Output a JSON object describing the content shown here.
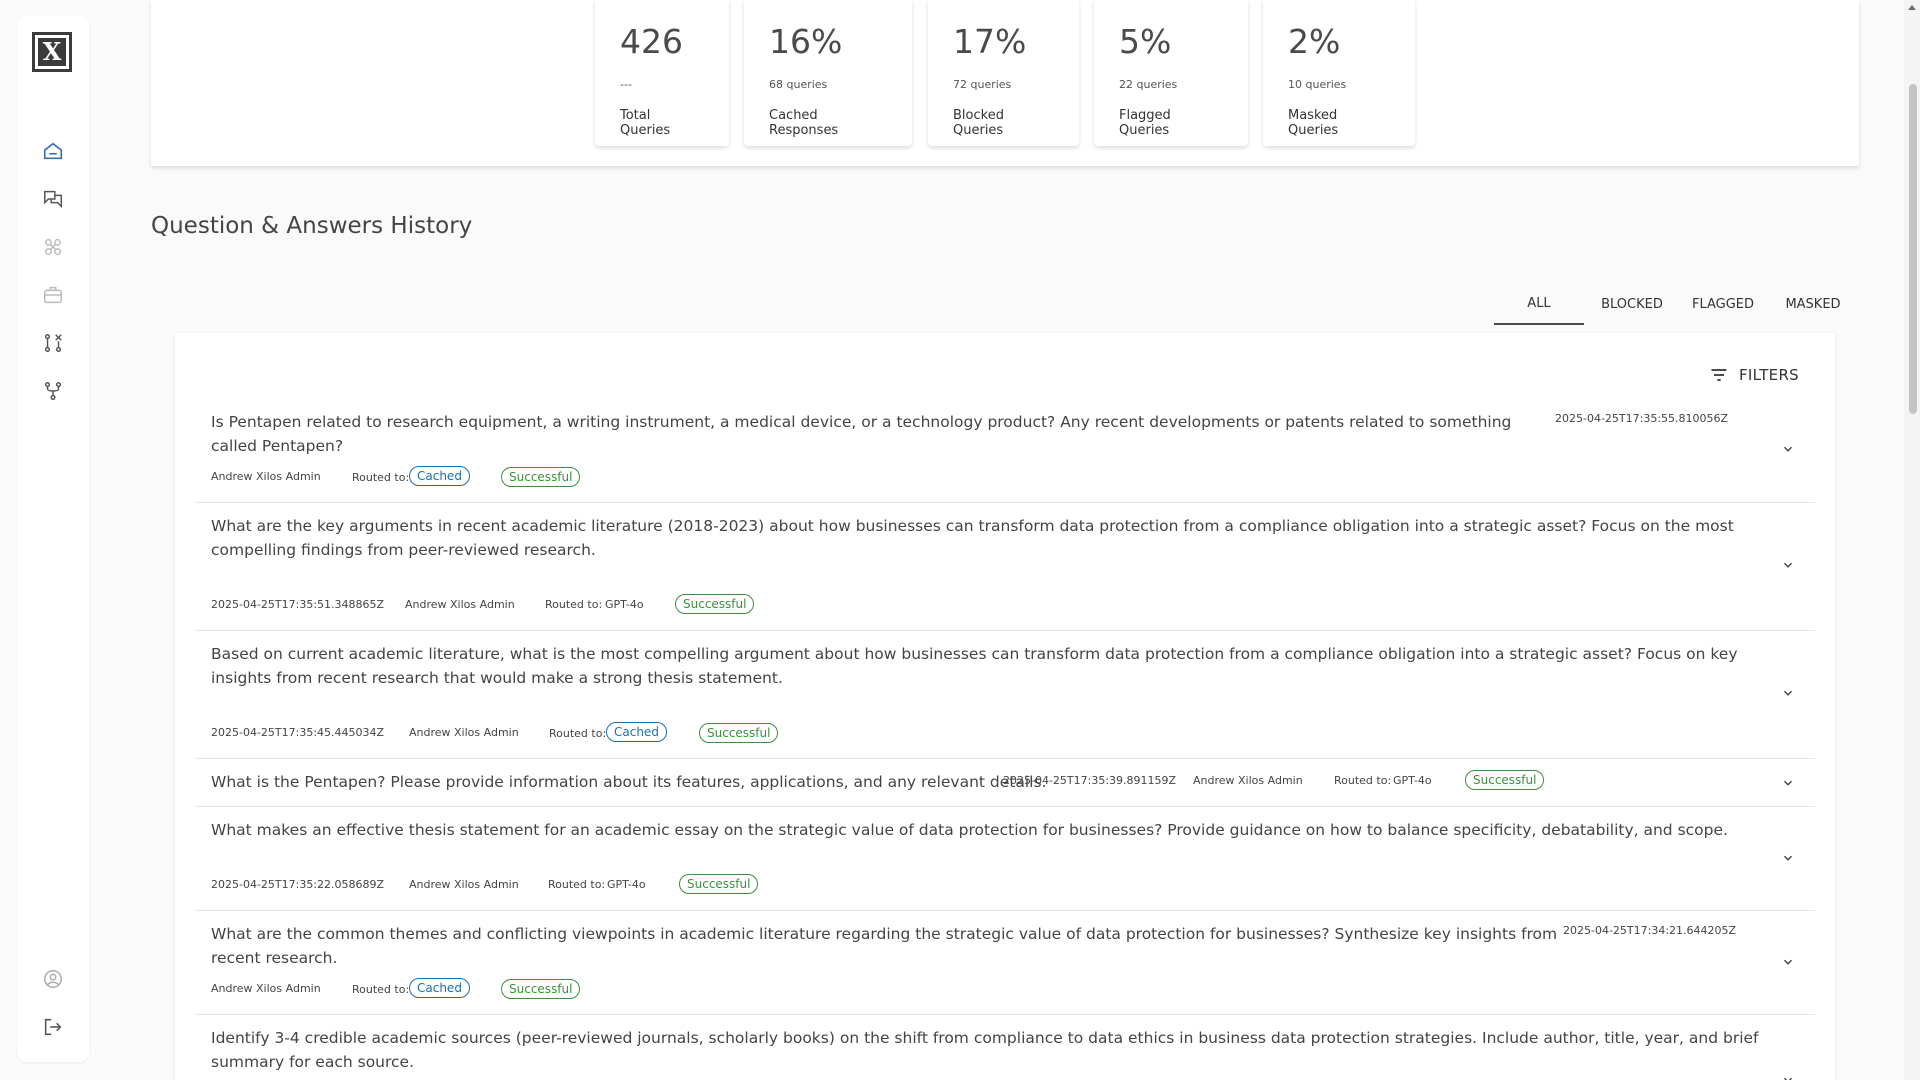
{
  "sidebar": {
    "logo_text": "X",
    "items": [
      {
        "icon": "home-icon"
      },
      {
        "icon": "chat-icon"
      },
      {
        "icon": "model-icon"
      },
      {
        "icon": "briefcase-icon"
      },
      {
        "icon": "compare-icon"
      },
      {
        "icon": "fork-icon"
      }
    ],
    "bottom_items": [
      {
        "icon": "user-icon"
      },
      {
        "icon": "logout-icon"
      }
    ]
  },
  "stats": [
    {
      "value": "426",
      "sub": "---",
      "label": "Total Queries"
    },
    {
      "value": "16%",
      "sub": "68 queries",
      "label": "Cached Responses"
    },
    {
      "value": "17%",
      "sub": "72 queries",
      "label": "Blocked Queries"
    },
    {
      "value": "5%",
      "sub": "22 queries",
      "label": "Flagged Queries"
    },
    {
      "value": "2%",
      "sub": "10 queries",
      "label": "Masked Queries"
    }
  ],
  "section_title": "Question & Answers History",
  "tabs": [
    "ALL",
    "BLOCKED",
    "FLAGGED",
    "MASKED"
  ],
  "active_tab": "ALL",
  "filters_label": "FILTERS",
  "colors": {
    "cached": "#1e6fa8",
    "successful": "#3e8e41"
  },
  "rows": [
    {
      "question": "Is Pentapen related to research equipment, a writing instrument, a medical device, or a technology product? Any recent developments or patents related to something called Pentapen?",
      "timestamp": "2025-04-25T17:35:55.810056Z",
      "user": "Andrew Xilos Admin",
      "routed_prefix": "Routed to:",
      "routed": "Cached",
      "status": "Successful"
    },
    {
      "question": "What are the key arguments in recent academic literature (2018-2023) about how businesses can transform data protection from a compliance obligation into a strategic asset? Focus on the most compelling findings from peer-reviewed research.",
      "timestamp": "2025-04-25T17:35:51.348865Z",
      "user": "Andrew Xilos Admin",
      "routed_prefix": "Routed to:",
      "routed": "GPT-4o",
      "status": "Successful"
    },
    {
      "question": "Based on current academic literature, what is the most compelling argument about how businesses can transform data protection from a compliance obligation into a strategic asset? Focus on key insights from recent research that would make a strong thesis statement.",
      "timestamp": "2025-04-25T17:35:45.445034Z",
      "user": "Andrew Xilos Admin",
      "routed_prefix": "Routed to:",
      "routed": "Cached",
      "status": "Successful"
    },
    {
      "question": "What is the Pentapen? Please provide information about its features, applications, and any relevant details.",
      "timestamp": "2025-04-25T17:35:39.891159Z",
      "user": "Andrew Xilos Admin",
      "routed_prefix": "Routed to:",
      "routed": "GPT-4o",
      "status": "Successful"
    },
    {
      "question": "What makes an effective thesis statement for an academic essay on the strategic value of data protection for businesses? Provide guidance on how to balance specificity, debatability, and scope.",
      "timestamp": "2025-04-25T17:35:22.058689Z",
      "user": "Andrew Xilos Admin",
      "routed_prefix": "Routed to:",
      "routed": "GPT-4o",
      "status": "Successful"
    },
    {
      "question": "What are the common themes and conflicting viewpoints in academic literature regarding the strategic value of data protection for businesses? Synthesize key insights from recent research.",
      "timestamp": "2025-04-25T17:34:21.644205Z",
      "user": "Andrew Xilos Admin",
      "routed_prefix": "Routed to:",
      "routed": "Cached",
      "status": "Successful"
    },
    {
      "question": "Identify 3-4 credible academic sources (peer-reviewed journals, scholarly books) on the shift from compliance to data ethics in business data protection strategies. Include author, title, year, and brief summary for each source."
    }
  ]
}
